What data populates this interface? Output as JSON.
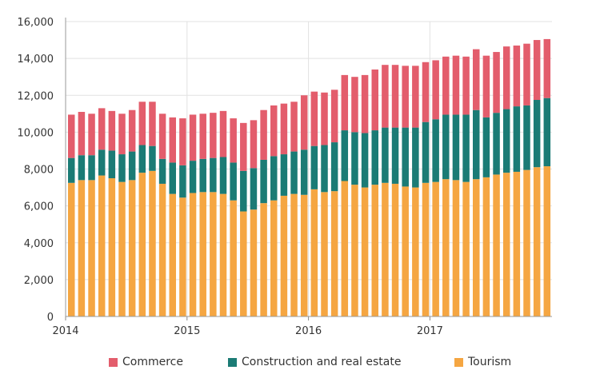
{
  "chart_data": {
    "type": "bar",
    "stacked": true,
    "title": "",
    "xlabel": "",
    "ylabel": "",
    "ylim": [
      0,
      16000
    ],
    "yticks": [
      "0",
      "2,000",
      "4,000",
      "6,000",
      "8,000",
      "10,000",
      "12,000",
      "14,000",
      "16,000"
    ],
    "ytick_values": [
      0,
      2000,
      4000,
      6000,
      8000,
      10000,
      12000,
      14000,
      16000
    ],
    "xticks": [
      "2014",
      "2015",
      "2016",
      "2017"
    ],
    "grid": true,
    "legend_position": "bottom",
    "categories": [
      "2014-01",
      "2014-02",
      "2014-03",
      "2014-04",
      "2014-05",
      "2014-06",
      "2014-07",
      "2014-08",
      "2014-09",
      "2014-10",
      "2014-11",
      "2014-12",
      "2015-01",
      "2015-02",
      "2015-03",
      "2015-04",
      "2015-05",
      "2015-06",
      "2015-07",
      "2015-08",
      "2015-09",
      "2015-10",
      "2015-11",
      "2015-12",
      "2016-01",
      "2016-02",
      "2016-03",
      "2016-04",
      "2016-05",
      "2016-06",
      "2016-07",
      "2016-08",
      "2016-09",
      "2016-10",
      "2016-11",
      "2016-12",
      "2017-01",
      "2017-02",
      "2017-03",
      "2017-04",
      "2017-05",
      "2017-06",
      "2017-07",
      "2017-08",
      "2017-09",
      "2017-10",
      "2017-11",
      "2017-12"
    ],
    "series": [
      {
        "name": "Tourism",
        "color": "#f5a642",
        "values": [
          7250,
          7400,
          7400,
          7650,
          7500,
          7300,
          7400,
          7800,
          7900,
          7200,
          6650,
          6450,
          6700,
          6750,
          6750,
          6650,
          6300,
          5700,
          5800,
          6150,
          6300,
          6550,
          6650,
          6600,
          6900,
          6750,
          6800,
          7350,
          7150,
          7000,
          7150,
          7250,
          7200,
          7050,
          7000,
          7250,
          7300,
          7450,
          7400,
          7300,
          7450,
          7550,
          7700,
          7800,
          7850,
          7950,
          8100,
          8150
        ]
      },
      {
        "name": "Construction and real estate",
        "color": "#1b7b75",
        "values": [
          1350,
          1350,
          1350,
          1400,
          1500,
          1500,
          1550,
          1500,
          1350,
          1350,
          1700,
          1750,
          1750,
          1800,
          1850,
          2000,
          2050,
          2200,
          2250,
          2350,
          2400,
          2250,
          2300,
          2450,
          2350,
          2550,
          2650,
          2750,
          2850,
          2950,
          2950,
          3000,
          3050,
          3200,
          3250,
          3300,
          3400,
          3500,
          3550,
          3650,
          3750,
          3250,
          3350,
          3450,
          3550,
          3500,
          3650,
          3700
        ]
      },
      {
        "name": "Commerce",
        "color": "#e35d6c",
        "values": [
          2350,
          2350,
          2250,
          2250,
          2150,
          2200,
          2250,
          2350,
          2400,
          2450,
          2450,
          2550,
          2500,
          2450,
          2450,
          2500,
          2400,
          2600,
          2600,
          2700,
          2750,
          2750,
          2700,
          2950,
          2950,
          2850,
          2850,
          3000,
          3000,
          3150,
          3300,
          3400,
          3400,
          3350,
          3350,
          3250,
          3200,
          3150,
          3200,
          3150,
          3300,
          3350,
          3300,
          3400,
          3300,
          3350,
          3250,
          3200
        ]
      }
    ],
    "legend": [
      "Commerce",
      "Construction and real estate",
      "Tourism"
    ]
  }
}
